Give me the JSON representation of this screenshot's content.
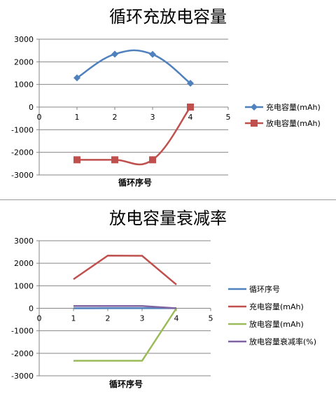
{
  "chart_data": [
    {
      "type": "scatter",
      "title": "循环充放电容量",
      "xlabel": "循环序号",
      "ylabel": "",
      "xlim": [
        0,
        5
      ],
      "ylim": [
        -3000,
        3000
      ],
      "xticks": [
        "0",
        "1",
        "2",
        "3",
        "4",
        "5"
      ],
      "yticks": [
        "3000",
        "2000",
        "1000",
        "0",
        "-1000",
        "-2000",
        "-3000"
      ],
      "grid": true,
      "legend_position": "right",
      "series": [
        {
          "name": "充电容量(mAh)",
          "color": "#4f81bd",
          "marker": "diamond",
          "smooth": true,
          "x": [
            1,
            2,
            3,
            4
          ],
          "y": [
            1290,
            2340,
            2330,
            1050
          ]
        },
        {
          "name": "放电容量(mAh)",
          "color": "#c0504d",
          "marker": "square",
          "smooth": true,
          "x": [
            1,
            2,
            3,
            4
          ],
          "y": [
            -2330,
            -2330,
            -2330,
            0
          ]
        }
      ]
    },
    {
      "type": "line",
      "title": "放电容量衰减率",
      "xlabel": "循环序号",
      "ylabel": "",
      "xlim": [
        0,
        5
      ],
      "ylim": [
        -3000,
        3000
      ],
      "xticks": [
        "0",
        "1",
        "2",
        "3",
        "4",
        "5"
      ],
      "yticks": [
        "3000",
        "2000",
        "1000",
        "0",
        "-1000",
        "-2000",
        "-3000"
      ],
      "grid": true,
      "legend_position": "right",
      "series": [
        {
          "name": "循环序号",
          "color": "#4f81bd",
          "x": [
            1,
            2,
            3,
            4
          ],
          "y": [
            1,
            2,
            3,
            4
          ]
        },
        {
          "name": "充电容量(mAh)",
          "color": "#c0504d",
          "x": [
            1,
            2,
            3,
            4
          ],
          "y": [
            1290,
            2340,
            2330,
            1050
          ]
        },
        {
          "name": "放电容量(mAh)",
          "color": "#9bbb59",
          "x": [
            1,
            2,
            3,
            4
          ],
          "y": [
            -2330,
            -2330,
            -2330,
            0
          ]
        },
        {
          "name": "放电容量衰减率(%)",
          "color": "#8064a2",
          "x": [
            1,
            2,
            3,
            4
          ],
          "y": [
            100,
            100,
            100,
            0
          ]
        }
      ]
    }
  ]
}
